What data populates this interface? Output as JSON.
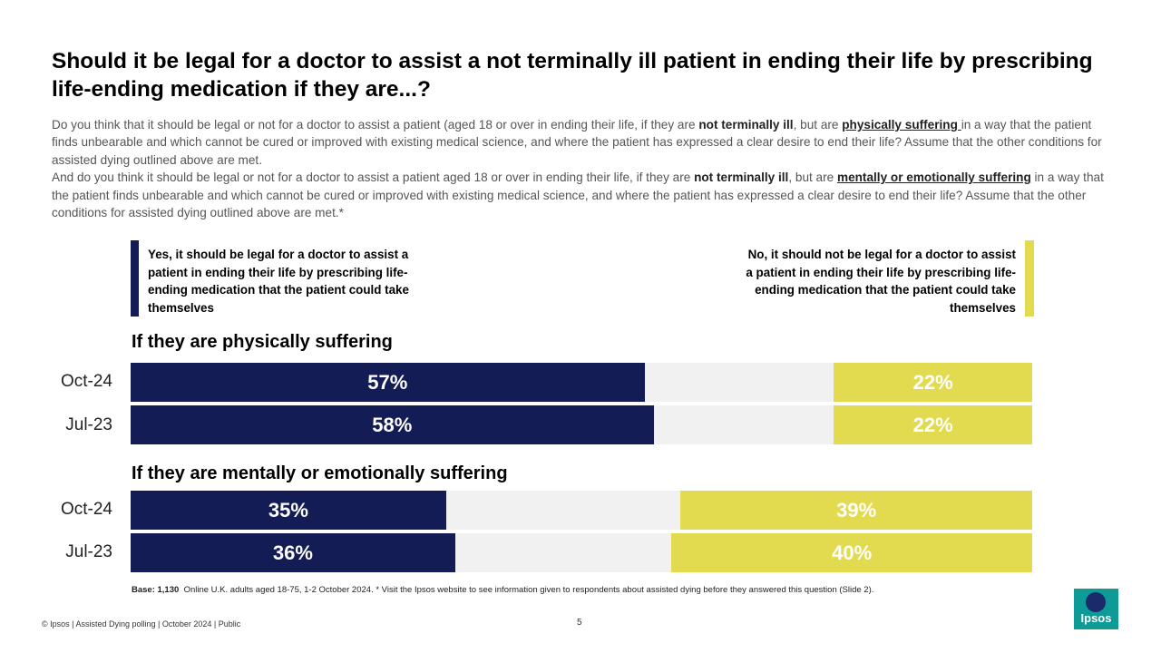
{
  "title": "Should it be legal for a doctor to assist a not terminally ill patient in ending their life by prescribing life-ending medication if they are...?",
  "question": {
    "p1_a": "Do you think that it should be legal or not for a doctor to assist a patient (aged 18 or over in ending their life, if they are ",
    "p1_b": "not terminally ill",
    "p1_c": ", but are ",
    "p1_d": "physically suffering ",
    "p1_e": "in a way that the patient finds unbearable and which cannot be cured or improved with existing medical science, and where the patient has expressed a clear desire to end their life? Assume that the other conditions for assisted dying outlined above are met.",
    "p2_a": "And do you think it should be legal or not for a doctor to assist a patient aged 18 or over in ending their life, if they are ",
    "p2_b": "not terminally ill",
    "p2_c": ", but are ",
    "p2_d": "mentally or emotionally suffering",
    "p2_e": " in a way that the patient finds unbearable and which cannot be cured or improved with existing medical science, and where the patient has expressed a clear desire to end their life? Assume that the other conditions for assisted dying outlined above are met.*"
  },
  "legend": {
    "yes": "Yes, it should be legal for a doctor to assist a patient in ending their life by prescribing life-ending medication that the patient could take themselves",
    "no": "No, it should not be legal for a doctor to assist a patient in ending their life by prescribing life-ending medication that the patient could take themselves"
  },
  "colors": {
    "yes": "#141c55",
    "no": "#e3db4f",
    "neither": "#f1f1f1"
  },
  "chart_data": {
    "type": "bar",
    "stacked": true,
    "orientation": "horizontal",
    "series": [
      {
        "name": "Yes, it should be legal for a doctor to assist a patient in ending their life by prescribing life-ending medication that the patient could take themselves"
      },
      {
        "name": "No, it should not be legal for a doctor to assist a patient in ending their life by prescribing life-ending medication that the patient could take themselves"
      }
    ],
    "groups": [
      {
        "title": "If they are physically suffering",
        "rows": [
          {
            "label": "Oct-24",
            "yes": 57,
            "no": 22,
            "yes_label": "57%",
            "no_label": "22%"
          },
          {
            "label": "Jul-23",
            "yes": 58,
            "no": 22,
            "yes_label": "58%",
            "no_label": "22%"
          }
        ]
      },
      {
        "title": "If they are mentally or emotionally suffering",
        "rows": [
          {
            "label": "Oct-24",
            "yes": 35,
            "no": 39,
            "yes_label": "35%",
            "no_label": "39%"
          },
          {
            "label": "Jul-23",
            "yes": 36,
            "no": 40,
            "yes_label": "36%",
            "no_label": "40%"
          }
        ]
      }
    ],
    "xlim": [
      0,
      100
    ]
  },
  "base_label": "Base: 1,130",
  "base_text": "Online U.K. adults aged 18-75, 1-2 October 2024. * Visit the Ipsos website to see information given to respondents about assisted dying before they answered this question (Slide 2).",
  "footer": "© Ipsos | Assisted Dying polling | October 2024 | Public",
  "page_number": "5",
  "logo_text": "Ipsos"
}
